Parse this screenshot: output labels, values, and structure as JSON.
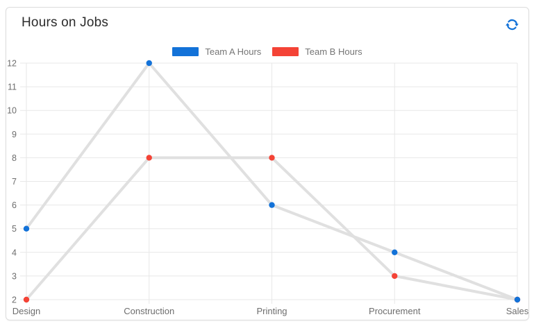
{
  "card": {
    "title": "Hours on Jobs"
  },
  "toolbar": {
    "refresh_icon": "refresh",
    "accent_color": "#1372d8"
  },
  "chart_data": {
    "type": "line",
    "title": "Hours on Jobs",
    "categories": [
      "Design",
      "Construction",
      "Printing",
      "Procurement",
      "Sales"
    ],
    "series": [
      {
        "name": "Team A Hours",
        "color": "#1372d8",
        "values": [
          5,
          12,
          6,
          4,
          2
        ]
      },
      {
        "name": "Team B Hours",
        "color": "#f44336",
        "values": [
          2,
          8,
          8,
          3,
          2
        ]
      }
    ],
    "connector_line_color": "#e0e0e0",
    "xlabel": "",
    "ylabel": "",
    "ylim": [
      2,
      12
    ],
    "y_ticks": [
      2,
      3,
      4,
      5,
      6,
      7,
      8,
      9,
      10,
      11,
      12
    ],
    "grid": true,
    "legend_position": "top-center",
    "marker_radius": 4.2
  }
}
